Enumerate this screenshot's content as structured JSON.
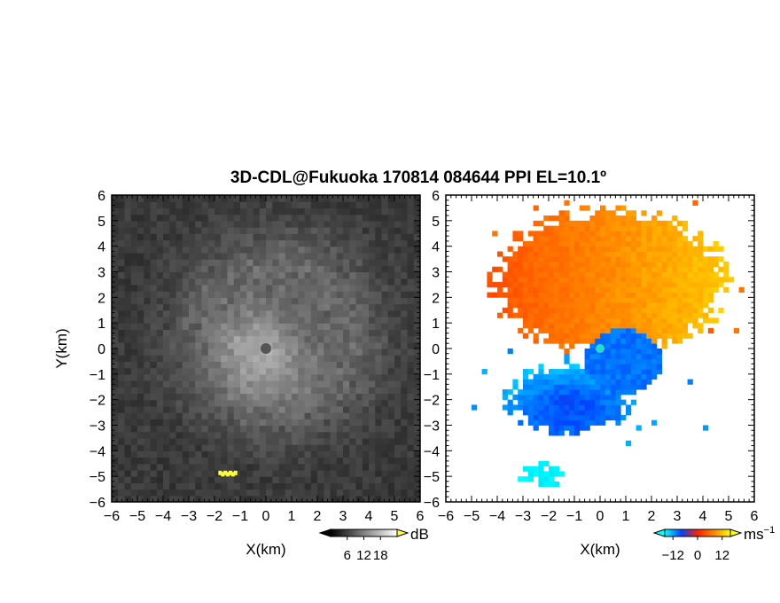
{
  "title": "3D-CDL@Fukuoka 170814 084644 PPI EL=10.1º",
  "chart_data": [
    {
      "type": "heatmap",
      "name": "reflectivity-panel",
      "xlabel": "X(km)",
      "ylabel": "Y(km)",
      "xlim": [
        -6,
        6
      ],
      "ylim": [
        -6,
        6
      ],
      "x_ticks": [
        "−6",
        "−5",
        "−4",
        "−3",
        "−2",
        "−1",
        "0",
        "1",
        "2",
        "3",
        "4",
        "5",
        "6"
      ],
      "y_ticks": [
        "6",
        "5",
        "4",
        "3",
        "2",
        "1",
        "0",
        "−1",
        "−2",
        "−3",
        "−4",
        "−5",
        "−6"
      ],
      "colorbar": {
        "unit": "dB",
        "tick_labels": [
          "6",
          "12",
          "18"
        ],
        "tick_values": [
          6,
          12,
          18
        ],
        "range": [
          0,
          24
        ],
        "colormap": "grayscale",
        "colors": [
          "#000000",
          "#ffffff"
        ],
        "over_color": "#ffff33"
      },
      "features": [
        {
          "label": "echo-core",
          "x": 0,
          "y": 0,
          "radius_km": 1.6,
          "value_db": 14
        },
        {
          "label": "spiral-band",
          "x": 0.5,
          "y": 0.5,
          "radius_km": 4.8,
          "value_db": 9
        },
        {
          "label": "blind-center",
          "x": 0,
          "y": 0,
          "radius_km": 0.2,
          "value_db": 3
        },
        {
          "label": "strong-target",
          "x": -1.5,
          "y": -4.9,
          "value_db": 22
        }
      ]
    },
    {
      "type": "heatmap",
      "name": "doppler-velocity-panel",
      "xlabel": "X(km)",
      "xlim": [
        -6,
        6
      ],
      "ylim": [
        -6,
        6
      ],
      "x_ticks": [
        "−6",
        "−5",
        "−4",
        "−3",
        "−2",
        "−1",
        "0",
        "1",
        "2",
        "3",
        "4",
        "5",
        "6"
      ],
      "y_ticks": [
        "6",
        "5",
        "4",
        "3",
        "2",
        "1",
        "0",
        "−1",
        "−2",
        "−3",
        "−4",
        "−5",
        "−6"
      ],
      "colorbar": {
        "unit": "ms",
        "unit_superscript": "−1",
        "tick_labels": [
          "−12",
          "0",
          "12"
        ],
        "tick_values": [
          -12,
          0,
          12
        ],
        "range": [
          -16,
          16
        ],
        "colors": [
          "#00ffff",
          "#0044ff",
          "#ff2200",
          "#ff8800",
          "#ffff00"
        ]
      },
      "regions": [
        {
          "label": "outbound-north",
          "x_range": [
            -4,
            5.5
          ],
          "y_range": [
            0.3,
            5.8
          ],
          "velocity": 8
        },
        {
          "label": "inbound-core",
          "x_range": [
            -1.2,
            2.4
          ],
          "y_range": [
            -2,
            0.8
          ],
          "velocity": -10
        },
        {
          "label": "inbound-southwest",
          "x_range": [
            -4,
            1.2
          ],
          "y_range": [
            -3.6,
            -0.6
          ],
          "velocity": -14
        },
        {
          "label": "inbound-south-patch",
          "x_range": [
            -3,
            -1.4
          ],
          "y_range": [
            -5.5,
            -4.4
          ],
          "velocity": -16
        }
      ],
      "center_marker": {
        "x": 0,
        "y": 0,
        "color": "#22ddcc"
      }
    }
  ]
}
